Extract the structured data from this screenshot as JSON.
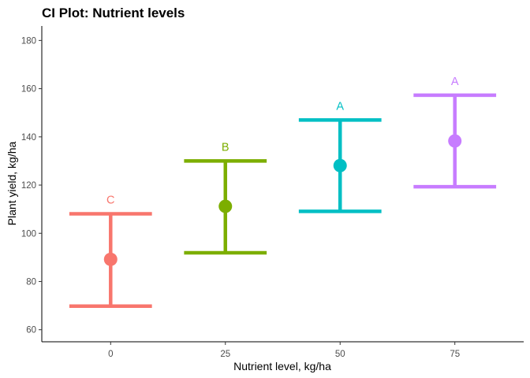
{
  "chart_data": {
    "type": "errorbar",
    "title": "CI Plot: Nutrient levels",
    "xlabel": "Nutrient level, kg/ha",
    "ylabel": "Plant yield, kg/ha",
    "xlim": [
      -15,
      90
    ],
    "ylim": [
      55,
      186
    ],
    "x_ticks": [
      0,
      25,
      50,
      75
    ],
    "y_ticks": [
      60,
      80,
      100,
      120,
      140,
      160,
      180
    ],
    "grid": false,
    "points": [
      {
        "x": 0,
        "y": 89.2,
        "lower": 69.8,
        "upper": 108.1,
        "label": "C",
        "color": "#F8766D"
      },
      {
        "x": 25,
        "y": 111.2,
        "lower": 91.9,
        "upper": 130.0,
        "label": "B",
        "color": "#7CAE00"
      },
      {
        "x": 50,
        "y": 128.1,
        "lower": 109.1,
        "upper": 147.0,
        "label": "A",
        "color": "#00BFC4"
      },
      {
        "x": 75,
        "y": 138.3,
        "lower": 119.3,
        "upper": 157.3,
        "label": "A",
        "color": "#C77CFF"
      }
    ]
  }
}
